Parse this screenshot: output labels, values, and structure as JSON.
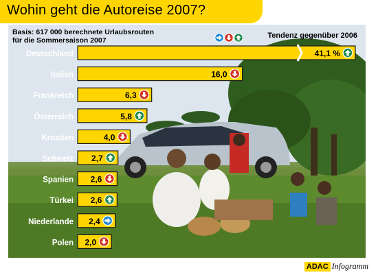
{
  "title": "Wohin geht die Autoreise 2007?",
  "basis_line1": "Basis: 617 000 berechnete Urlaubsrouten",
  "basis_line2": "für die Sommersaison 2007",
  "legend_label": "Tendenz gegenüber 2006",
  "brand": "ADAC",
  "brand_suffix": "Infogramm",
  "colors": {
    "accent": "#ffd500",
    "bar": "#ffd500",
    "bar_border": "#1a1a1a",
    "up": "#1f8a4c",
    "down": "#d42b1e",
    "same": "#1e88d2"
  },
  "chart_data": {
    "type": "bar",
    "orientation": "horizontal",
    "title": "Wohin geht die Autoreise 2007?",
    "categories": [
      "Deutschland",
      "Italien",
      "Frankreich",
      "Österreich",
      "Kroatien",
      "Schweiz",
      "Spanien",
      "Türkei",
      "Niederlande",
      "Polen"
    ],
    "values": [
      41.1,
      16.0,
      6.3,
      5.8,
      4.0,
      2.7,
      2.6,
      2.6,
      2.4,
      2.0
    ],
    "value_labels": [
      "41,1 %",
      "16,0",
      "6,3",
      "5,8",
      "4,0",
      "2,7",
      "2,6",
      "2,6",
      "2,4",
      "2,0"
    ],
    "trend": [
      "up",
      "down",
      "down",
      "up",
      "down",
      "up",
      "down",
      "up",
      "same",
      "down"
    ],
    "legend": [
      "same",
      "down",
      "up"
    ],
    "axis_break_on_first_bar": true
  }
}
